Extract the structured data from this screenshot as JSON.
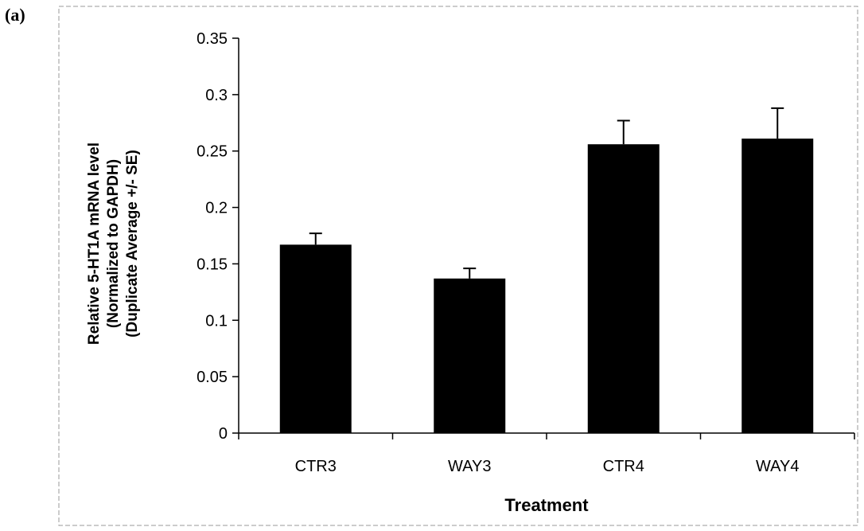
{
  "panel_label": "(a)",
  "chart_data": {
    "type": "bar",
    "title": "",
    "categories": [
      "CTR3",
      "WAY3",
      "CTR4",
      "WAY4"
    ],
    "values": [
      0.167,
      0.137,
      0.256,
      0.261
    ],
    "errors": [
      0.01,
      0.009,
      0.021,
      0.027
    ],
    "xlabel": "Treatment",
    "ylabel_lines": [
      "Relative 5-HT1A mRNA level",
      "(Normalized to GAPDH)",
      "(Duplicate Average +/- SE)"
    ],
    "ylim": [
      0,
      0.35
    ],
    "yticks": [
      0,
      0.05,
      0.1,
      0.15,
      0.2,
      0.25,
      0.3,
      0.35
    ],
    "ytick_labels": [
      "0",
      "0.05",
      "0.1",
      "0.15",
      "0.2",
      "0.25",
      "0.3",
      "0.35"
    ],
    "grid": false,
    "legend": "none",
    "bar_color": "#000000"
  }
}
